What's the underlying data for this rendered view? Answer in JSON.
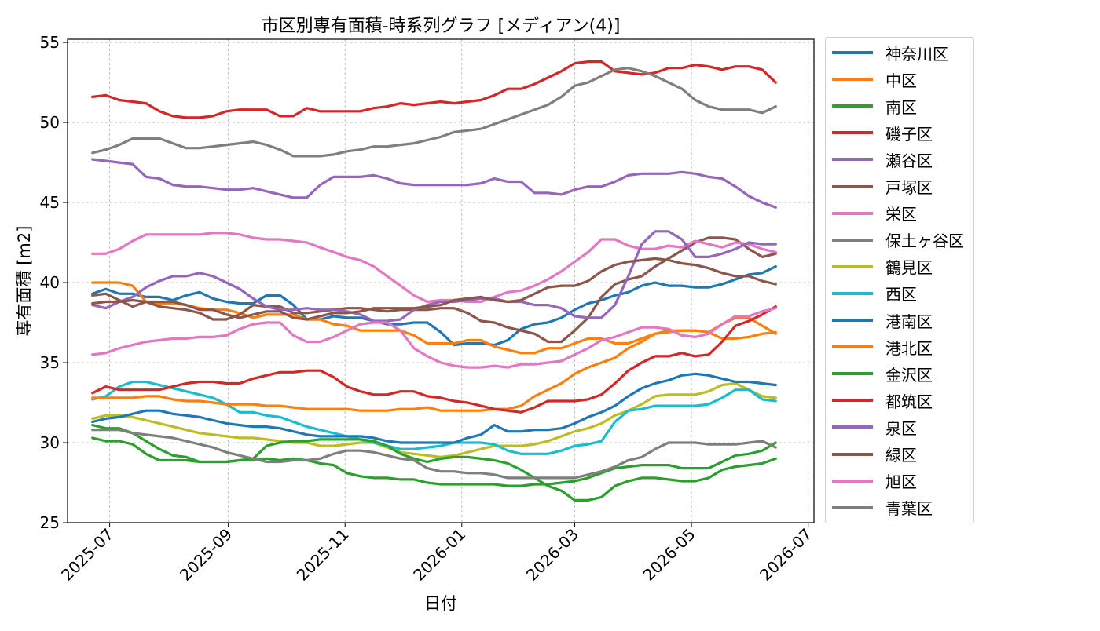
{
  "chart_data": {
    "type": "line",
    "title": "市区別専有面積-時系列グラフ [メディアン(4)]",
    "xlabel": "日付",
    "ylabel": "専有面積 [m2]",
    "xlim": [
      "2025-06-09",
      "2026-07-04"
    ],
    "ylim": [
      25,
      55.2
    ],
    "y_ticks": [
      25,
      30,
      35,
      40,
      45,
      50,
      55
    ],
    "x_ticks": [
      "2025-07",
      "2025-09",
      "2025-11",
      "2026-01",
      "2026-03",
      "2026-05",
      "2026-07"
    ],
    "x_ticks_dates": [
      "2025-07-01",
      "2025-09-01",
      "2025-11-01",
      "2026-01-01",
      "2026-03-01",
      "2026-05-01",
      "2026-07-01"
    ],
    "grid": true,
    "legend_position": "outside-right",
    "x_dates": [
      "2025-06-22",
      "2025-06-29",
      "2025-07-06",
      "2025-07-13",
      "2025-07-20",
      "2025-07-27",
      "2025-08-03",
      "2025-08-10",
      "2025-08-17",
      "2025-08-24",
      "2025-08-31",
      "2025-09-07",
      "2025-09-14",
      "2025-09-21",
      "2025-09-28",
      "2025-10-05",
      "2025-10-12",
      "2025-10-19",
      "2025-10-26",
      "2025-11-02",
      "2025-11-09",
      "2025-11-16",
      "2025-11-23",
      "2025-11-30",
      "2025-12-07",
      "2025-12-14",
      "2025-12-21",
      "2025-12-28",
      "2026-01-04",
      "2026-01-11",
      "2026-01-18",
      "2026-01-25",
      "2026-02-01",
      "2026-02-08",
      "2026-02-15",
      "2026-02-22",
      "2026-03-01",
      "2026-03-08",
      "2026-03-15",
      "2026-03-22",
      "2026-03-29",
      "2026-04-05",
      "2026-04-12",
      "2026-04-19",
      "2026-04-26",
      "2026-05-03",
      "2026-05-10",
      "2026-05-17",
      "2026-05-24",
      "2026-05-31",
      "2026-06-07",
      "2026-06-14"
    ],
    "series": [
      {
        "name": "神奈川区",
        "color": "#1f77b4",
        "values": [
          39.3,
          39.6,
          39.3,
          39.3,
          39.1,
          39.1,
          38.9,
          39.2,
          39.4,
          39.0,
          38.8,
          38.7,
          38.7,
          39.2,
          39.2,
          38.6,
          37.7,
          37.7,
          37.9,
          37.8,
          37.8,
          37.6,
          37.4,
          37.4,
          37.5,
          37.5,
          36.9,
          36.1,
          36.2,
          36.2,
          36.1,
          36.4,
          37.1,
          37.4,
          37.5,
          37.8,
          38.3,
          38.7,
          38.9,
          39.2,
          39.4,
          39.8,
          40.0,
          39.8,
          39.8,
          39.7,
          39.7,
          39.9,
          40.2,
          40.5,
          40.6,
          41.0
        ]
      },
      {
        "name": "中区",
        "color": "#ff7f0e",
        "values": [
          40.0,
          40.0,
          40.0,
          39.8,
          38.8,
          38.7,
          38.7,
          38.6,
          38.4,
          38.3,
          38.3,
          38.1,
          37.8,
          38.0,
          38.0,
          38.0,
          37.7,
          37.7,
          37.4,
          37.3,
          37.0,
          37.0,
          37.0,
          37.0,
          36.7,
          36.2,
          36.2,
          36.2,
          36.4,
          36.4,
          36.0,
          35.8,
          35.6,
          35.6,
          35.9,
          35.9,
          36.2,
          36.5,
          36.5,
          36.2,
          36.2,
          36.5,
          36.8,
          36.9,
          37.0,
          37.0,
          36.9,
          36.5,
          36.5,
          36.6,
          36.8,
          36.9
        ]
      },
      {
        "name": "南区",
        "color": "#2ca02c",
        "values": [
          31.1,
          30.9,
          30.9,
          30.6,
          30.1,
          29.6,
          29.2,
          29.1,
          28.8,
          28.8,
          28.8,
          28.9,
          28.9,
          29.0,
          28.9,
          29.0,
          28.9,
          28.7,
          28.6,
          28.1,
          27.9,
          27.8,
          27.8,
          27.7,
          27.7,
          27.5,
          27.4,
          27.4,
          27.4,
          27.4,
          27.4,
          27.3,
          27.3,
          27.4,
          27.4,
          27.5,
          27.6,
          27.8,
          28.1,
          28.4,
          28.5,
          28.6,
          28.6,
          28.6,
          28.4,
          28.4,
          28.4,
          28.8,
          29.2,
          29.3,
          29.5,
          30.0
        ]
      },
      {
        "name": "磯子区",
        "color": "#d62728",
        "values": [
          51.6,
          51.7,
          51.4,
          51.3,
          51.2,
          50.7,
          50.4,
          50.3,
          50.3,
          50.4,
          50.7,
          50.8,
          50.8,
          50.8,
          50.4,
          50.4,
          50.9,
          50.7,
          50.7,
          50.7,
          50.7,
          50.9,
          51.0,
          51.2,
          51.1,
          51.2,
          51.3,
          51.2,
          51.3,
          51.4,
          51.7,
          52.1,
          52.1,
          52.4,
          52.8,
          53.2,
          53.7,
          53.8,
          53.8,
          53.2,
          53.1,
          53.0,
          53.1,
          53.4,
          53.4,
          53.6,
          53.5,
          53.3,
          53.5,
          53.5,
          53.3,
          52.5
        ]
      },
      {
        "name": "瀬谷区",
        "color": "#9467bd",
        "values": [
          47.7,
          47.6,
          47.5,
          47.4,
          46.6,
          46.5,
          46.1,
          46.0,
          46.0,
          45.9,
          45.8,
          45.8,
          45.9,
          45.7,
          45.5,
          45.3,
          45.3,
          46.1,
          46.6,
          46.6,
          46.6,
          46.7,
          46.5,
          46.2,
          46.1,
          46.1,
          46.1,
          46.1,
          46.1,
          46.2,
          46.5,
          46.3,
          46.3,
          45.6,
          45.6,
          45.5,
          45.8,
          46.0,
          46.0,
          46.3,
          46.7,
          46.8,
          46.8,
          46.8,
          46.9,
          46.8,
          46.6,
          46.5,
          46.0,
          45.4,
          45.0,
          44.7
        ]
      },
      {
        "name": "戸塚区",
        "color": "#8c564b",
        "values": [
          39.2,
          39.3,
          38.9,
          38.5,
          38.8,
          38.5,
          38.4,
          38.3,
          38.1,
          37.7,
          37.7,
          38.0,
          38.6,
          38.5,
          38.5,
          38.1,
          38.1,
          38.2,
          38.3,
          38.4,
          38.4,
          38.3,
          38.2,
          38.3,
          38.3,
          38.3,
          38.4,
          38.4,
          38.1,
          37.6,
          37.5,
          37.2,
          37.0,
          36.8,
          36.3,
          36.3,
          37.0,
          37.8,
          39.1,
          39.9,
          40.2,
          40.4,
          41.0,
          41.5,
          42.0,
          42.5,
          42.8,
          42.8,
          42.7,
          42.1,
          41.6,
          41.8
        ]
      },
      {
        "name": "栄区",
        "color": "#e377c2",
        "values": [
          41.8,
          41.8,
          42.1,
          42.6,
          43.0,
          43.0,
          43.0,
          43.0,
          43.0,
          43.1,
          43.1,
          43.0,
          42.8,
          42.7,
          42.7,
          42.6,
          42.5,
          42.2,
          41.9,
          41.6,
          41.4,
          41.0,
          40.4,
          39.8,
          39.2,
          38.8,
          38.9,
          38.9,
          38.8,
          38.8,
          39.1,
          39.4,
          39.5,
          39.8,
          40.2,
          40.7,
          41.3,
          41.9,
          42.7,
          42.7,
          42.3,
          42.1,
          42.1,
          42.3,
          42.2,
          42.6,
          42.4,
          42.2,
          42.5,
          42.4,
          42.1,
          41.9
        ]
      },
      {
        "name": "保土ヶ谷区",
        "color": "#7f7f7f",
        "values": [
          48.1,
          48.3,
          48.6,
          49.0,
          49.0,
          49.0,
          48.7,
          48.4,
          48.4,
          48.5,
          48.6,
          48.7,
          48.8,
          48.6,
          48.3,
          47.9,
          47.9,
          47.9,
          48.0,
          48.2,
          48.3,
          48.5,
          48.5,
          48.6,
          48.7,
          48.9,
          49.1,
          49.4,
          49.5,
          49.6,
          49.9,
          50.2,
          50.5,
          50.8,
          51.1,
          51.6,
          52.3,
          52.5,
          52.9,
          53.3,
          53.4,
          53.2,
          52.9,
          52.5,
          52.1,
          51.4,
          51.0,
          50.8,
          50.8,
          50.8,
          50.6,
          51.0
        ]
      },
      {
        "name": "鶴見区",
        "color": "#bcbd22",
        "values": [
          31.5,
          31.7,
          31.7,
          31.6,
          31.4,
          31.2,
          31.0,
          30.8,
          30.6,
          30.5,
          30.4,
          30.3,
          30.3,
          30.2,
          30.1,
          30.0,
          30.0,
          29.8,
          29.8,
          29.9,
          30.0,
          30.0,
          29.7,
          29.4,
          29.3,
          29.2,
          29.1,
          29.2,
          29.4,
          29.6,
          29.8,
          29.8,
          29.8,
          29.9,
          30.1,
          30.4,
          30.7,
          30.9,
          31.2,
          31.7,
          32.0,
          32.4,
          32.9,
          33.0,
          33.0,
          33.0,
          33.2,
          33.6,
          33.7,
          33.3,
          32.9,
          32.8
        ]
      },
      {
        "name": "西区",
        "color": "#17becf",
        "values": [
          32.7,
          32.9,
          33.5,
          33.8,
          33.8,
          33.6,
          33.4,
          33.2,
          33.0,
          32.8,
          32.4,
          31.9,
          31.9,
          31.7,
          31.6,
          31.3,
          31.0,
          30.8,
          30.6,
          30.4,
          30.2,
          30.0,
          29.8,
          29.6,
          29.6,
          29.7,
          29.8,
          30.0,
          30.0,
          30.0,
          29.9,
          29.5,
          29.3,
          29.3,
          29.3,
          29.5,
          29.8,
          29.9,
          30.1,
          31.3,
          32.0,
          32.1,
          32.3,
          32.3,
          32.3,
          32.3,
          32.4,
          32.8,
          33.3,
          33.3,
          32.7,
          32.6
        ]
      },
      {
        "name": "港南区",
        "color": "#1f77b4",
        "values": [
          31.3,
          31.5,
          31.6,
          31.8,
          32.0,
          32.0,
          31.8,
          31.7,
          31.6,
          31.4,
          31.2,
          31.1,
          31.0,
          31.0,
          30.9,
          30.7,
          30.5,
          30.4,
          30.4,
          30.4,
          30.4,
          30.3,
          30.1,
          30.0,
          30.0,
          30.0,
          30.0,
          30.0,
          30.3,
          30.5,
          31.1,
          30.7,
          30.7,
          30.8,
          30.8,
          30.9,
          31.2,
          31.6,
          31.9,
          32.3,
          32.9,
          33.4,
          33.7,
          33.9,
          34.2,
          34.3,
          34.2,
          34.0,
          33.8,
          33.8,
          33.7,
          33.6
        ]
      },
      {
        "name": "港北区",
        "color": "#ff7f0e",
        "values": [
          32.8,
          32.8,
          32.8,
          32.8,
          32.9,
          32.9,
          32.7,
          32.6,
          32.6,
          32.5,
          32.4,
          32.4,
          32.4,
          32.3,
          32.3,
          32.2,
          32.1,
          32.1,
          32.1,
          32.1,
          32.0,
          32.0,
          32.0,
          32.1,
          32.1,
          32.2,
          32.0,
          32.0,
          32.0,
          32.0,
          32.1,
          32.1,
          32.3,
          32.9,
          33.3,
          33.7,
          34.3,
          34.7,
          35.0,
          35.3,
          35.9,
          36.3,
          36.8,
          37.0,
          37.0,
          37.0,
          36.9,
          37.4,
          37.8,
          37.8,
          37.3,
          36.8
        ]
      },
      {
        "name": "金沢区",
        "color": "#2ca02c",
        "values": [
          30.3,
          30.1,
          30.1,
          29.9,
          29.3,
          28.9,
          28.9,
          28.9,
          28.8,
          28.8,
          28.8,
          28.9,
          29.0,
          29.8,
          30.0,
          30.1,
          30.1,
          30.2,
          30.2,
          30.2,
          30.2,
          30.1,
          29.8,
          29.3,
          29.0,
          28.8,
          29.0,
          29.1,
          29.1,
          29.0,
          28.9,
          28.7,
          28.3,
          27.8,
          27.3,
          27.0,
          26.4,
          26.4,
          26.6,
          27.3,
          27.6,
          27.8,
          27.8,
          27.7,
          27.6,
          27.6,
          27.8,
          28.3,
          28.5,
          28.6,
          28.7,
          29.0
        ]
      },
      {
        "name": "都筑区",
        "color": "#d62728",
        "values": [
          33.1,
          33.5,
          33.3,
          33.3,
          33.3,
          33.3,
          33.5,
          33.7,
          33.8,
          33.8,
          33.7,
          33.7,
          34.0,
          34.2,
          34.4,
          34.4,
          34.5,
          34.5,
          34.1,
          33.5,
          33.2,
          33.0,
          33.0,
          33.2,
          33.2,
          32.9,
          32.8,
          32.6,
          32.5,
          32.3,
          32.1,
          32.0,
          31.9,
          32.2,
          32.6,
          32.6,
          32.6,
          32.7,
          33.0,
          33.7,
          34.5,
          35.0,
          35.4,
          35.4,
          35.6,
          35.4,
          35.5,
          36.3,
          37.3,
          37.6,
          38.0,
          38.5
        ]
      },
      {
        "name": "泉区",
        "color": "#9467bd",
        "values": [
          38.6,
          38.4,
          38.8,
          39.1,
          39.7,
          40.1,
          40.4,
          40.4,
          40.6,
          40.4,
          40.0,
          39.6,
          39.0,
          38.5,
          38.3,
          38.3,
          38.4,
          38.3,
          38.3,
          38.2,
          38.0,
          37.6,
          37.6,
          37.7,
          38.3,
          38.6,
          38.8,
          38.8,
          38.9,
          39.0,
          39.0,
          38.8,
          38.8,
          38.6,
          38.6,
          38.4,
          37.9,
          37.8,
          37.8,
          38.6,
          40.4,
          42.4,
          43.2,
          43.2,
          42.7,
          41.6,
          41.6,
          41.8,
          42.1,
          42.5,
          42.4,
          42.4
        ]
      },
      {
        "name": "緑区",
        "color": "#8c564b",
        "values": [
          38.7,
          38.8,
          38.8,
          38.9,
          38.8,
          38.8,
          38.8,
          38.6,
          38.3,
          38.3,
          38.0,
          37.8,
          38.0,
          38.2,
          38.2,
          37.8,
          37.7,
          37.9,
          38.1,
          38.1,
          38.2,
          38.4,
          38.4,
          38.4,
          38.4,
          38.5,
          38.6,
          38.9,
          39.0,
          39.1,
          38.9,
          38.8,
          38.9,
          39.3,
          39.7,
          39.8,
          39.8,
          40.1,
          40.7,
          41.1,
          41.3,
          41.4,
          41.5,
          41.4,
          41.2,
          41.1,
          40.9,
          40.6,
          40.4,
          40.4,
          40.1,
          39.9
        ]
      },
      {
        "name": "旭区",
        "color": "#e377c2",
        "values": [
          35.5,
          35.6,
          35.9,
          36.1,
          36.3,
          36.4,
          36.5,
          36.5,
          36.6,
          36.6,
          36.7,
          37.1,
          37.4,
          37.5,
          37.5,
          36.7,
          36.3,
          36.3,
          36.6,
          37.0,
          37.4,
          37.5,
          37.5,
          37.0,
          35.9,
          35.4,
          35.0,
          34.8,
          34.7,
          34.7,
          34.8,
          34.7,
          34.9,
          34.9,
          35.0,
          35.1,
          35.5,
          35.9,
          36.4,
          36.6,
          36.9,
          37.2,
          37.2,
          37.1,
          36.7,
          36.6,
          36.8,
          37.4,
          37.9,
          37.9,
          38.2,
          38.4
        ]
      },
      {
        "name": "青葉区",
        "color": "#7f7f7f",
        "values": [
          30.8,
          30.8,
          30.8,
          30.6,
          30.5,
          30.4,
          30.3,
          30.1,
          29.9,
          29.7,
          29.4,
          29.2,
          29.0,
          28.8,
          28.8,
          28.9,
          28.9,
          29.0,
          29.3,
          29.5,
          29.5,
          29.4,
          29.2,
          29.0,
          28.9,
          28.4,
          28.2,
          28.2,
          28.1,
          28.1,
          28.0,
          27.8,
          27.8,
          27.8,
          27.8,
          27.8,
          27.8,
          28.0,
          28.2,
          28.5,
          28.9,
          29.1,
          29.6,
          30.0,
          30.0,
          30.0,
          29.9,
          29.9,
          29.9,
          30.0,
          30.1,
          29.7
        ]
      }
    ]
  }
}
